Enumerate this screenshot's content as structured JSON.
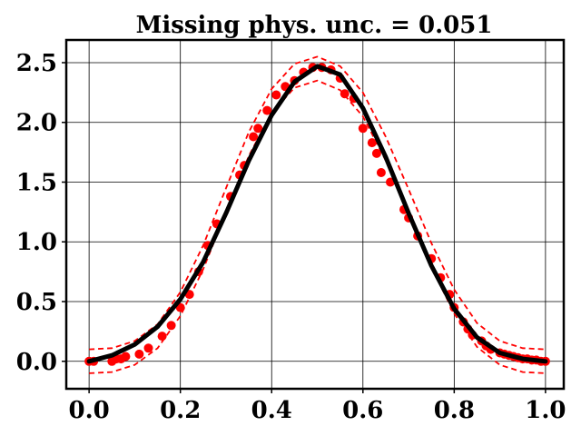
{
  "chart_data": {
    "type": "line",
    "title": "Missing phys. unc. = 0.051",
    "xlabel": "",
    "ylabel": "",
    "xlim": [
      -0.05,
      1.04
    ],
    "ylim": [
      -0.23,
      2.69
    ],
    "xticks": [
      0.0,
      0.2,
      0.4,
      0.6,
      0.8,
      1.0
    ],
    "xtick_labels": [
      "0.0",
      "0.2",
      "0.4",
      "0.6",
      "0.8",
      "1.0"
    ],
    "yticks": [
      0.0,
      0.5,
      1.0,
      1.5,
      2.0,
      2.5
    ],
    "ytick_labels": [
      "0.0",
      "0.5",
      "1.0",
      "1.5",
      "2.0",
      "2.5"
    ],
    "grid": true,
    "legend": "none",
    "colors": {
      "truth": "#000000",
      "data": "#ff0000",
      "band": "#ff0000"
    },
    "series": [
      {
        "kind": "line",
        "style": "solid",
        "x": [
          0.0,
          0.05,
          0.1,
          0.15,
          0.2,
          0.25,
          0.3,
          0.35,
          0.4,
          0.45,
          0.5,
          0.55,
          0.6,
          0.65,
          0.7,
          0.75,
          0.8,
          0.85,
          0.9,
          0.95,
          1.0
        ],
        "y": [
          0.0,
          0.05,
          0.14,
          0.29,
          0.52,
          0.83,
          1.24,
          1.68,
          2.06,
          2.34,
          2.47,
          2.4,
          2.12,
          1.71,
          1.24,
          0.8,
          0.44,
          0.2,
          0.07,
          0.02,
          0.0
        ]
      },
      {
        "kind": "line",
        "style": "dashed",
        "x": [
          0.0,
          0.05,
          0.1,
          0.15,
          0.2,
          0.25,
          0.3,
          0.35,
          0.4,
          0.45,
          0.5,
          0.55,
          0.6,
          0.65,
          0.7,
          0.75,
          0.8,
          0.85,
          0.9,
          0.95,
          1.0
        ],
        "y": [
          0.1,
          0.11,
          0.17,
          0.31,
          0.58,
          0.97,
          1.45,
          1.92,
          2.28,
          2.49,
          2.55,
          2.47,
          2.25,
          1.88,
          1.44,
          0.99,
          0.6,
          0.32,
          0.17,
          0.11,
          0.1
        ]
      },
      {
        "kind": "line",
        "style": "dashed",
        "x": [
          0.0,
          0.05,
          0.1,
          0.15,
          0.2,
          0.25,
          0.3,
          0.35,
          0.4,
          0.45,
          0.5,
          0.55,
          0.6,
          0.65,
          0.7,
          0.75,
          0.8,
          0.85,
          0.9,
          0.95,
          1.0
        ],
        "y": [
          -0.1,
          -0.09,
          -0.03,
          0.11,
          0.38,
          0.77,
          1.25,
          1.72,
          2.08,
          2.29,
          2.35,
          2.27,
          2.05,
          1.68,
          1.24,
          0.79,
          0.4,
          0.12,
          -0.03,
          -0.09,
          -0.1
        ]
      },
      {
        "kind": "scatter",
        "x": [
          0.0,
          0.01,
          0.05,
          0.06,
          0.07,
          0.08,
          0.11,
          0.13,
          0.16,
          0.18,
          0.2,
          0.22,
          0.24,
          0.26,
          0.28,
          0.31,
          0.33,
          0.34,
          0.36,
          0.37,
          0.39,
          0.41,
          0.43,
          0.45,
          0.47,
          0.49,
          0.51,
          0.53,
          0.55,
          0.56,
          0.58,
          0.6,
          0.62,
          0.63,
          0.64,
          0.66,
          0.69,
          0.7,
          0.72,
          0.75,
          0.77,
          0.79,
          0.8,
          0.82,
          0.83,
          0.84,
          0.86,
          0.87,
          0.88,
          0.9,
          0.91,
          0.92,
          0.93,
          0.94,
          0.95,
          0.96,
          0.97,
          0.98,
          0.99,
          1.0
        ],
        "y": [
          0.0,
          0.0,
          0.0,
          0.02,
          0.02,
          0.04,
          0.06,
          0.11,
          0.21,
          0.3,
          0.45,
          0.56,
          0.75,
          0.97,
          1.15,
          1.38,
          1.56,
          1.64,
          1.88,
          1.95,
          2.1,
          2.23,
          2.3,
          2.35,
          2.42,
          2.46,
          2.46,
          2.44,
          2.37,
          2.24,
          2.2,
          1.95,
          1.83,
          1.74,
          1.58,
          1.5,
          1.27,
          1.2,
          1.05,
          0.86,
          0.7,
          0.56,
          0.45,
          0.33,
          0.27,
          0.22,
          0.17,
          0.13,
          0.1,
          0.07,
          0.06,
          0.05,
          0.04,
          0.03,
          0.02,
          0.02,
          0.01,
          0.01,
          0.0,
          0.0
        ]
      }
    ]
  }
}
